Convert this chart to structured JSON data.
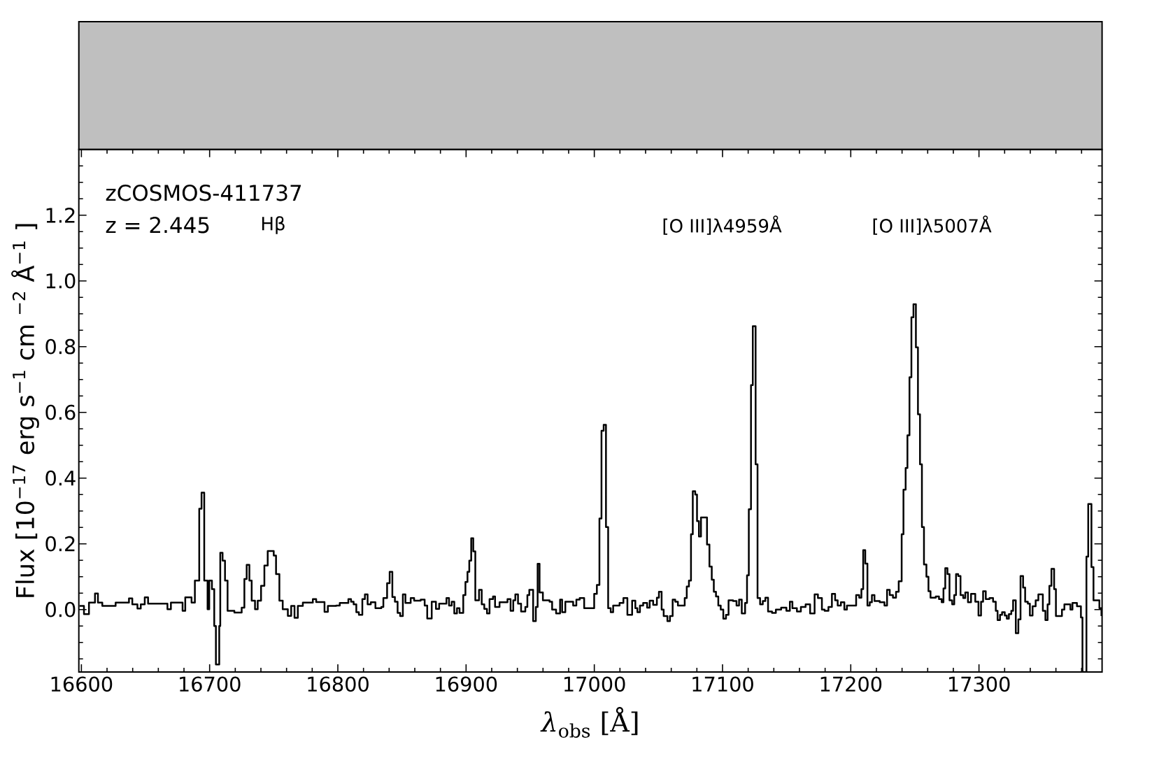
{
  "chart_data": {
    "type": "step",
    "color": "#000000",
    "xlabel": "*λ*$_{obs}$ [Å]",
    "ylabel": "Flux [10$^{−17}$ erg s$^{−1}$ cm $^{−2}$ Å$^{−1}$ ]",
    "annotations": [
      "zCOSMOS-411737",
      "z = 2.445",
      "Hβ",
      "[O III]λ4959Å",
      "[O III]λ5007Å"
    ],
    "xlim": [
      16598,
      17396
    ],
    "ylim": [
      -0.19,
      1.4
    ],
    "xticks": [
      16600,
      {
        "value": 16620,
        "label": null
      },
      {
        "value": 16640,
        "label": null
      },
      {
        "value": 16660,
        "label": null
      },
      {
        "value": 16680,
        "label": null
      },
      16700,
      {
        "value": 16720,
        "label": null
      },
      {
        "value": 16740,
        "label": null
      },
      {
        "value": 16760,
        "label": null
      },
      {
        "value": 16780,
        "label": null
      },
      16800,
      {
        "value": 16820,
        "label": null
      },
      {
        "value": 16840,
        "label": null
      },
      {
        "value": 16860,
        "label": null
      },
      {
        "value": 16880,
        "label": null
      },
      16900,
      {
        "value": 16920,
        "label": null
      },
      {
        "value": 16940,
        "label": null
      },
      {
        "value": 16960,
        "label": null
      },
      {
        "value": 16980,
        "label": null
      },
      17000,
      {
        "value": 17020,
        "label": null
      },
      {
        "value": 17040,
        "label": null
      },
      {
        "value": 17060,
        "label": null
      },
      {
        "value": 17080,
        "label": null
      },
      17100,
      {
        "value": 17120,
        "label": null
      },
      {
        "value": 17140,
        "label": null
      },
      {
        "value": 17160,
        "label": null
      },
      {
        "value": 17180,
        "label": null
      },
      17200,
      {
        "value": 17220,
        "label": null
      },
      {
        "value": 17240,
        "label": null
      },
      {
        "value": 17260,
        "label": null
      },
      {
        "value": 17280,
        "label": null
      },
      17300,
      {
        "value": 17320,
        "label": null
      },
      {
        "value": 17340,
        "label": null
      },
      {
        "value": 17360,
        "label": null
      },
      {
        "value": 17380,
        "label": null
      }
    ],
    "yticks": [
      {
        "value": -0.15,
        "label": null
      },
      {
        "value": -0.1,
        "label": null
      },
      {
        "value": -0.05,
        "label": null
      },
      {
        "value": 0,
        "label": "0.0"
      },
      {
        "value": 0.05,
        "label": null
      },
      {
        "value": 0.1,
        "label": null
      },
      {
        "value": 0.15,
        "label": null
      },
      0.2,
      {
        "value": 0.25,
        "label": null
      },
      {
        "value": 0.3,
        "label": null
      },
      {
        "value": 0.35,
        "label": null
      },
      0.4,
      {
        "value": 0.45,
        "label": null
      },
      {
        "value": 0.5,
        "label": null
      },
      {
        "value": 0.55,
        "label": null
      },
      0.6,
      {
        "value": 0.65,
        "label": null
      },
      {
        "value": 0.7,
        "label": null
      },
      {
        "value": 0.75,
        "label": null
      },
      0.8,
      {
        "value": 0.85,
        "label": null
      },
      {
        "value": 0.9,
        "label": null
      },
      {
        "value": 0.95,
        "label": null
      },
      {
        "value": 1,
        "label": "1.0"
      },
      {
        "value": 1.05,
        "label": null
      },
      {
        "value": 1.1,
        "label": null
      },
      {
        "value": 1.15,
        "label": null
      },
      1.2,
      {
        "value": 1.25,
        "label": null
      },
      {
        "value": 1.3,
        "label": null
      },
      {
        "value": 1.35,
        "label": null
      }
    ],
    "x": [
      16598.6,
      16602.0,
      16605.9,
      16610.6,
      16612.9,
      16616.3,
      16626.7,
      16637.1,
      16639.7,
      16643.7,
      16646.3,
      16649.4,
      16652.0,
      16667.1,
      16669.8,
      16678.9,
      16681.0,
      16685.9,
      16688.5,
      16691.9,
      16693.7,
      16695.8,
      16698.4,
      16699.7,
      16701.8,
      16703.6,
      16704.9,
      16707.5,
      16708.3,
      16710.1,
      16712.0,
      16714.0,
      16719.3,
      16725.0,
      16727.1,
      16728.9,
      16731.0,
      16732.8,
      16735.4,
      16737.5,
      16740.1,
      16742.7,
      16745.3,
      16750.0,
      16751.8,
      16754.4,
      16757.0,
      16761.0,
      16763.6,
      16766.2,
      16768.8,
      16772.7,
      16780.5,
      16783.1,
      16789.6,
      16792.2,
      16798.7,
      16801.5,
      16808.2,
      16810.3,
      16812.3,
      16814.4,
      16816.4,
      16819.1,
      16821.1,
      16823.2,
      16825.7,
      16829.3,
      16833.9,
      16835.5,
      16838.4,
      16840.4,
      16842.5,
      16844.5,
      16846.6,
      16848.6,
      16850.7,
      16852.7,
      16856.8,
      16859.5,
      16864.6,
      16867.7,
      16869.7,
      16873.2,
      16876.5,
      16879.0,
      16884.7,
      16886.7,
      16888.8,
      16890.8,
      16892.9,
      16894.9,
      16897.8,
      16899.5,
      16901.1,
      16902.5,
      16904.0,
      16905.6,
      16907.2,
      16910.1,
      16912.2,
      16914.2,
      16916.3,
      16918.3,
      16921.0,
      16922.6,
      16926.1,
      16932.3,
      16934.7,
      16936.8,
      16938.4,
      16940.5,
      16942.9,
      16946.2,
      16947.8,
      16949.3,
      16952.3,
      16954.4,
      16955.8,
      16957.3,
      16959.9,
      16965.1,
      16967.1,
      16970.2,
      16973.3,
      16974.9,
      16977.4,
      16983.5,
      16986.0,
      16988.6,
      16992.1,
      16999.9,
      17002.0,
      17004.0,
      17005.6,
      17007.3,
      17009.1,
      17010.8,
      17012.8,
      17014.7,
      17019.7,
      17022.7,
      17025.8,
      17029.5,
      17032.0,
      17033.6,
      17035.6,
      17038.1,
      17041.2,
      17043.2,
      17045.9,
      17048.8,
      17050.4,
      17052.5,
      17054.1,
      17057.0,
      17059.0,
      17061.1,
      17063.1,
      17065.2,
      17070.5,
      17072.1,
      17073.8,
      17075.4,
      17076.8,
      17078.7,
      17080.1,
      17081.6,
      17083.2,
      17087.9,
      17089.8,
      17091.6,
      17093.2,
      17094.9,
      17096.7,
      17098.6,
      17100.6,
      17102.7,
      17104.7,
      17108.2,
      17110.9,
      17112.9,
      17115.0,
      17117.6,
      17119.1,
      17120.5,
      17122.2,
      17123.6,
      17125.8,
      17127.3,
      17129.3,
      17131.4,
      17133.4,
      17135.5,
      17138.6,
      17141.6,
      17145.7,
      17149.8,
      17152.5,
      17154.5,
      17158.0,
      17161.1,
      17164.8,
      17168.3,
      17171.8,
      17174.4,
      17177.5,
      17179.6,
      17182.6,
      17185.3,
      17187.8,
      17189.8,
      17192.3,
      17195.0,
      17197.0,
      17204.2,
      17206.6,
      17208.3,
      17209.7,
      17211.3,
      17213.0,
      17214.8,
      17216.5,
      17218.5,
      17222.6,
      17226.3,
      17228.3,
      17230.4,
      17232.9,
      17235.3,
      17237.4,
      17239.7,
      17241.1,
      17242.8,
      17244.2,
      17245.8,
      17247.3,
      17248.9,
      17250.8,
      17252.4,
      17254.0,
      17255.5,
      17257.1,
      17259.0,
      17260.6,
      17262.2,
      17266.3,
      17268.8,
      17270.9,
      17272.3,
      17273.7,
      17275.4,
      17277.0,
      17279.1,
      17280.7,
      17282.1,
      17283.8,
      17285.6,
      17287.7,
      17289.3,
      17291.4,
      17293.8,
      17297.1,
      17299.6,
      17301.6,
      17303.2,
      17305.3,
      17308.2,
      17311.0,
      17313.1,
      17314.5,
      17316.4,
      17318.0,
      17320.1,
      17321.7,
      17323.3,
      17325.2,
      17326.6,
      17328.7,
      17330.7,
      17332.4,
      17334.4,
      17336.0,
      17338.1,
      17339.7,
      17341.8,
      17344.2,
      17346.3,
      17349.8,
      17351.8,
      17353.5,
      17354.9,
      17356.5,
      17358.6,
      17360.0,
      17364.7,
      17366.6,
      17371.3,
      17372.9,
      17376.4,
      17379.5,
      17380.7,
      17383.8,
      17385.2,
      17387.7,
      17389.3,
      17393.9,
      17395.5
    ],
    "values": [
      0.011,
      -0.014,
      0.021,
      0.049,
      0.021,
      0.011,
      0.021,
      0.034,
      0.016,
      0.003,
      0.016,
      0.037,
      0.018,
      0.001,
      0.021,
      -0.004,
      0.037,
      0.021,
      0.088,
      0.307,
      0.356,
      0.088,
      0.001,
      0.088,
      0.062,
      -0.05,
      -0.167,
      -0.05,
      0.173,
      0.149,
      0.088,
      -0.004,
      -0.009,
      0.006,
      0.093,
      0.136,
      0.088,
      0.027,
      0.001,
      0.027,
      0.072,
      0.134,
      0.178,
      0.164,
      0.108,
      0.027,
      0.001,
      -0.019,
      0.011,
      -0.025,
      0.011,
      0.021,
      0.032,
      0.023,
      -0.007,
      0.011,
      0.012,
      0.02,
      0.032,
      0.024,
      0.016,
      -0.008,
      -0.016,
      0.032,
      0.046,
      0.016,
      0.022,
      0.004,
      0.008,
      0.035,
      0.08,
      0.115,
      0.038,
      0.024,
      -0.01,
      -0.02,
      0.046,
      0.02,
      0.035,
      0.027,
      0.03,
      0.012,
      -0.027,
      0.024,
      0.002,
      0.018,
      0.035,
      0.012,
      0.024,
      -0.012,
      0.004,
      -0.01,
      0.044,
      0.084,
      0.115,
      0.149,
      0.217,
      0.177,
      0.028,
      0.06,
      0.016,
      0.002,
      -0.012,
      0.032,
      0.04,
      0.008,
      0.022,
      0.032,
      -0.004,
      0.028,
      0.046,
      0.018,
      -0.006,
      0.008,
      0.044,
      0.06,
      -0.035,
      0.008,
      0.139,
      0.052,
      0.028,
      0.024,
      0.0,
      -0.012,
      0.03,
      -0.008,
      0.024,
      0.012,
      0.03,
      0.035,
      0.004,
      0.048,
      0.075,
      0.277,
      0.544,
      0.562,
      0.251,
      0.004,
      -0.008,
      0.012,
      0.02,
      0.035,
      -0.016,
      0.027,
      0.004,
      -0.008,
      0.012,
      0.02,
      0.006,
      0.027,
      0.014,
      0.036,
      0.054,
      0.0,
      -0.02,
      -0.035,
      -0.02,
      0.03,
      0.024,
      0.012,
      0.035,
      0.07,
      0.088,
      0.229,
      0.36,
      0.35,
      0.269,
      0.222,
      0.28,
      0.198,
      0.131,
      0.091,
      0.054,
      0.04,
      0.012,
      0.0,
      -0.028,
      -0.016,
      0.028,
      0.026,
      0.012,
      0.03,
      -0.012,
      0.02,
      0.104,
      0.305,
      0.683,
      0.862,
      0.442,
      0.035,
      0.016,
      0.026,
      0.036,
      -0.006,
      -0.01,
      0.0,
      0.006,
      -0.004,
      0.024,
      0.004,
      -0.006,
      0.008,
      0.016,
      -0.012,
      0.046,
      0.035,
      0.0,
      -0.004,
      0.008,
      0.048,
      0.028,
      0.012,
      0.022,
      0.0,
      0.012,
      0.044,
      0.036,
      0.062,
      0.181,
      0.14,
      0.012,
      0.022,
      0.044,
      0.026,
      0.022,
      0.012,
      0.06,
      0.044,
      0.036,
      0.054,
      0.086,
      0.229,
      0.365,
      0.431,
      0.53,
      0.707,
      0.889,
      0.929,
      0.798,
      0.594,
      0.442,
      0.251,
      0.137,
      0.1,
      0.056,
      0.036,
      0.04,
      0.032,
      0.022,
      0.064,
      0.126,
      0.108,
      0.028,
      0.016,
      0.044,
      0.108,
      0.102,
      0.044,
      0.035,
      0.052,
      0.022,
      0.048,
      0.024,
      -0.018,
      0.024,
      0.056,
      0.032,
      0.035,
      0.024,
      -0.004,
      -0.032,
      -0.016,
      -0.008,
      -0.018,
      -0.028,
      -0.014,
      -0.004,
      0.028,
      -0.072,
      -0.03,
      0.102,
      0.067,
      0.024,
      0.018,
      -0.018,
      0.01,
      0.028,
      0.046,
      -0.004,
      -0.032,
      0.016,
      0.072,
      0.124,
      0.062,
      -0.02,
      0.0,
      0.016,
      0.0,
      0.02,
      0.01,
      -0.024,
      -0.19,
      0.161,
      0.321,
      0.129,
      0.028,
      0.004,
      -0.02
    ]
  }
}
